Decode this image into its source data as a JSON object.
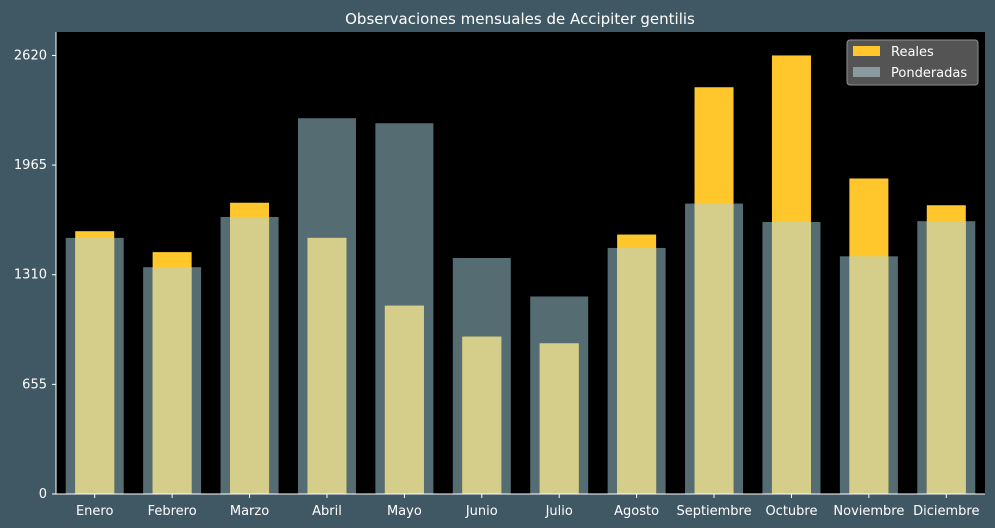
{
  "chart_data": {
    "type": "bar",
    "title": "Observaciones mensuales de Accipiter gentilis",
    "categories": [
      "Enero",
      "Febrero",
      "Marzo",
      "Abril",
      "Mayo",
      "Junio",
      "Julio",
      "Agosto",
      "Septiembre",
      "Octubre",
      "Noviembre",
      "Diciembre"
    ],
    "series": [
      {
        "name": "Reales",
        "color": "#ffc72c",
        "values": [
          1570,
          1445,
          1740,
          1530,
          1125,
          940,
          900,
          1550,
          2430,
          2620,
          1885,
          1725
        ]
      },
      {
        "name": "Ponderadas",
        "color": "#dde3e0",
        "values": [
          1530,
          1355,
          1655,
          2245,
          2215,
          1410,
          1180,
          1470,
          1735,
          1625,
          1420,
          1630
        ]
      }
    ],
    "yticks": [
      0,
      655,
      1310,
      1965,
      2620
    ],
    "ylim": [
      0,
      2760
    ],
    "grid": false,
    "legend_position": "top-right",
    "xlabel": "",
    "ylabel": ""
  }
}
